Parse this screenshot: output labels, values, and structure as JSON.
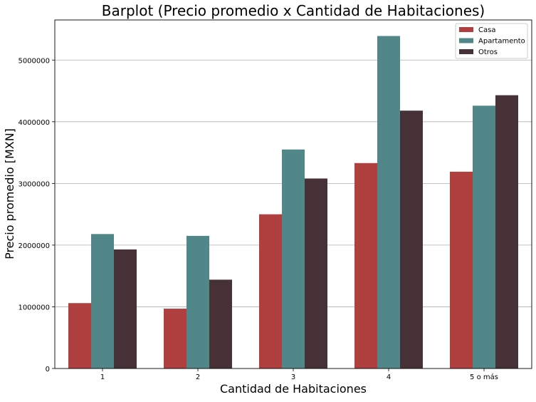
{
  "chart_data": {
    "type": "bar",
    "title": "Barplot (Precio promedio x Cantidad de Habitaciones)",
    "xlabel": "Cantidad de Habitaciones",
    "ylabel": "Precio promedio [MXN]",
    "categories": [
      "1",
      "2",
      "3",
      "4",
      "5 o más"
    ],
    "series": [
      {
        "name": "Casa",
        "color": "#b04040",
        "values": [
          1060000,
          970000,
          2500000,
          3330000,
          3190000
        ]
      },
      {
        "name": "Apartamento",
        "color": "#518788",
        "values": [
          2180000,
          2150000,
          3550000,
          5390000,
          4260000
        ]
      },
      {
        "name": "Otros",
        "color": "#463236",
        "values": [
          1930000,
          1440000,
          3080000,
          4180000,
          4430000
        ]
      }
    ],
    "ylim": [
      0,
      5650000
    ],
    "yticks": [
      0,
      1000000,
      2000000,
      3000000,
      4000000,
      5000000
    ],
    "ytick_labels": [
      "0",
      "1000000",
      "2000000",
      "3000000",
      "4000000",
      "5000000"
    ],
    "grid": "horizontal",
    "legend_position": "top-right"
  }
}
